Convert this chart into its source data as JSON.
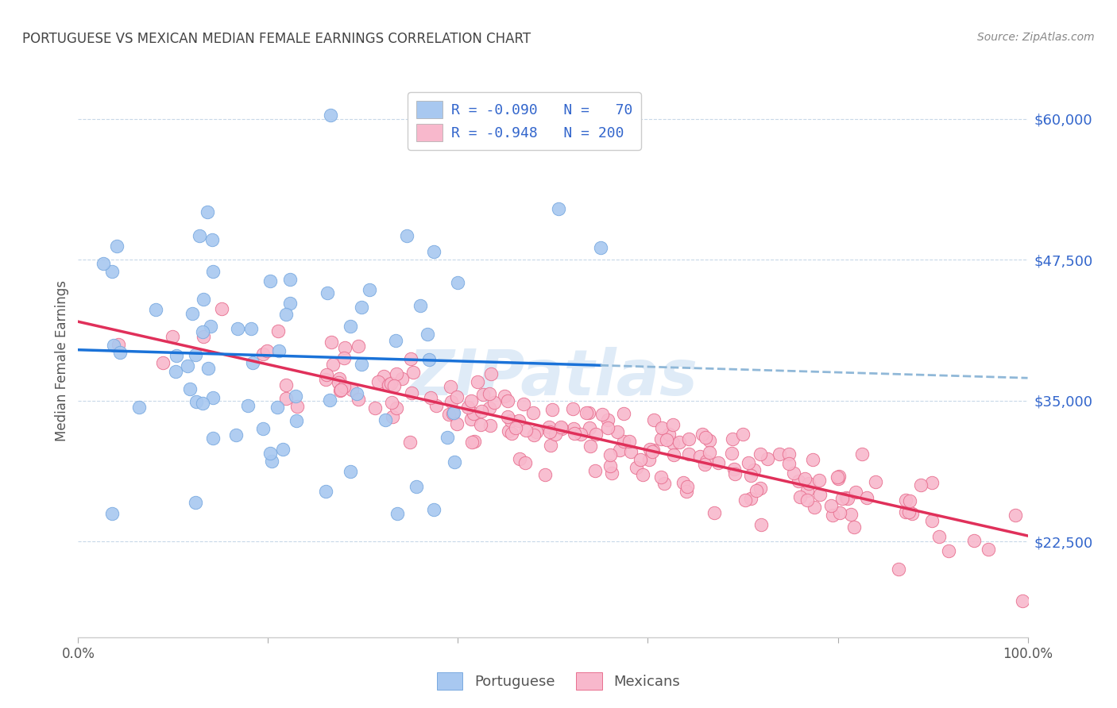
{
  "title": "PORTUGUESE VS MEXICAN MEDIAN FEMALE EARNINGS CORRELATION CHART",
  "source": "Source: ZipAtlas.com",
  "ylabel": "Median Female Earnings",
  "ytick_labels": [
    "$22,500",
    "$35,000",
    "$47,500",
    "$60,000"
  ],
  "ytick_values": [
    22500,
    35000,
    47500,
    60000
  ],
  "ymin": 14000,
  "ymax": 63000,
  "xmin": 0.0,
  "xmax": 1.0,
  "portuguese_color": "#a8c8f0",
  "portuguese_edge": "#7aaae0",
  "mexican_color": "#f8b8cc",
  "mexican_edge": "#e87090",
  "trendline_portuguese_solid_color": "#1a72d8",
  "trendline_portuguese_dashed_color": "#90b8d8",
  "trendline_mexican_color": "#e0305a",
  "background_color": "#ffffff",
  "grid_color": "#c8d8e8",
  "watermark": "ZIPatlas",
  "portuguese_N": 70,
  "mexican_N": 200,
  "legend_R1": "-0.090",
  "legend_N1": "70",
  "legend_R2": "-0.948",
  "legend_N2": "200",
  "legend_color": "#3366cc",
  "title_color": "#444444",
  "source_color": "#888888"
}
